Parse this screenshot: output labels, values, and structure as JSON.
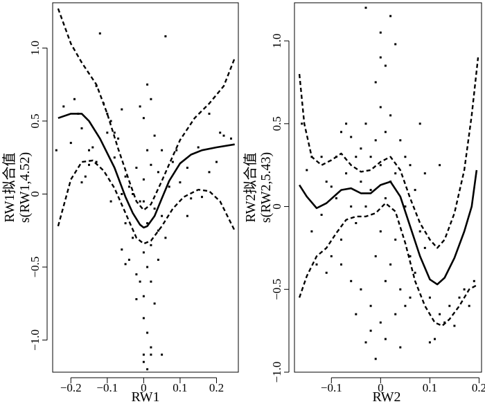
{
  "chart_data": [
    {
      "type": "line",
      "title": "",
      "xlabel": "RW1",
      "ylabel_line1": "RW1拟合值",
      "ylabel_line2": "s(RW1,4.52)",
      "xlim": [
        -0.25,
        0.26
      ],
      "ylim": [
        -1.22,
        1.31
      ],
      "x_ticks": [
        -0.2,
        -0.1,
        0,
        0.1,
        0.2
      ],
      "x_tick_labels": [
        "−0.2",
        "−0.1",
        "0",
        "0.1",
        "0.2"
      ],
      "y_ticks": [
        -1.0,
        -0.5,
        0,
        0.5,
        1.0
      ],
      "y_tick_labels": [
        "−1.0",
        "−0.5",
        "0",
        "0.5",
        "1.0"
      ],
      "series": [
        {
          "role": "fit",
          "style": "solid",
          "points": [
            [
              -0.235,
              0.52
            ],
            [
              -0.2,
              0.55
            ],
            [
              -0.17,
              0.55
            ],
            [
              -0.15,
              0.5
            ],
            [
              -0.12,
              0.38
            ],
            [
              -0.08,
              0.18
            ],
            [
              -0.05,
              -0.02
            ],
            [
              -0.03,
              -0.13
            ],
            [
              -0.01,
              -0.21
            ],
            [
              0.0,
              -0.23
            ],
            [
              0.01,
              -0.22
            ],
            [
              0.03,
              -0.15
            ],
            [
              0.05,
              -0.03
            ],
            [
              0.07,
              0.09
            ],
            [
              0.1,
              0.21
            ],
            [
              0.13,
              0.27
            ],
            [
              0.16,
              0.3
            ],
            [
              0.2,
              0.32
            ],
            [
              0.25,
              0.34
            ]
          ]
        },
        {
          "role": "upper",
          "style": "dashed",
          "points": [
            [
              -0.235,
              1.27
            ],
            [
              -0.2,
              1.03
            ],
            [
              -0.17,
              0.9
            ],
            [
              -0.13,
              0.75
            ],
            [
              -0.1,
              0.55
            ],
            [
              -0.07,
              0.31
            ],
            [
              -0.04,
              0.09
            ],
            [
              -0.02,
              -0.05
            ],
            [
              0.0,
              -0.11
            ],
            [
              0.02,
              -0.07
            ],
            [
              0.05,
              0.09
            ],
            [
              0.08,
              0.26
            ],
            [
              0.1,
              0.37
            ],
            [
              0.14,
              0.52
            ],
            [
              0.18,
              0.62
            ],
            [
              0.22,
              0.74
            ],
            [
              0.25,
              0.93
            ]
          ]
        },
        {
          "role": "lower",
          "style": "dashed",
          "points": [
            [
              -0.235,
              -0.22
            ],
            [
              -0.2,
              0.1
            ],
            [
              -0.17,
              0.22
            ],
            [
              -0.14,
              0.23
            ],
            [
              -0.11,
              0.16
            ],
            [
              -0.08,
              0.04
            ],
            [
              -0.05,
              -0.13
            ],
            [
              -0.02,
              -0.3
            ],
            [
              0.0,
              -0.34
            ],
            [
              0.02,
              -0.32
            ],
            [
              0.05,
              -0.22
            ],
            [
              0.08,
              -0.1
            ],
            [
              0.11,
              -0.02
            ],
            [
              0.15,
              0.03
            ],
            [
              0.18,
              0.02
            ],
            [
              0.21,
              -0.05
            ],
            [
              0.25,
              -0.25
            ]
          ]
        }
      ],
      "scatter": [
        [
          -0.24,
          0.3
        ],
        [
          -0.22,
          0.6
        ],
        [
          -0.2,
          0.35
        ],
        [
          -0.19,
          0.65
        ],
        [
          -0.18,
          0.55
        ],
        [
          -0.17,
          0.45
        ],
        [
          -0.16,
          0.12
        ],
        [
          -0.15,
          0.2
        ],
        [
          -0.14,
          0.32
        ],
        [
          -0.13,
          0.74
        ],
        [
          -0.12,
          1.1
        ],
        [
          -0.1,
          0.55
        ],
        [
          -0.09,
          0.5
        ],
        [
          -0.08,
          0.42
        ],
        [
          -0.08,
          0.25
        ],
        [
          -0.07,
          0.38
        ],
        [
          -0.06,
          0.0
        ],
        [
          -0.06,
          -0.38
        ],
        [
          -0.05,
          -0.2
        ],
        [
          -0.05,
          0.12
        ],
        [
          -0.04,
          0.05
        ],
        [
          -0.04,
          -0.45
        ],
        [
          -0.03,
          0.0
        ],
        [
          -0.03,
          -0.3
        ],
        [
          -0.02,
          -0.55
        ],
        [
          -0.02,
          0.18
        ],
        [
          -0.01,
          0.6
        ],
        [
          -0.01,
          -0.05
        ],
        [
          -0.01,
          -0.6
        ],
        [
          0.0,
          0.52
        ],
        [
          0.0,
          0.1
        ],
        [
          0.0,
          -0.05
        ],
        [
          0.0,
          -0.4
        ],
        [
          0.0,
          -0.7
        ],
        [
          0.0,
          -0.85
        ],
        [
          0.0,
          -1.1
        ],
        [
          0.0,
          -1.15
        ],
        [
          0.01,
          0.75
        ],
        [
          0.01,
          0.3
        ],
        [
          0.01,
          -0.2
        ],
        [
          0.01,
          -0.5
        ],
        [
          0.01,
          -0.95
        ],
        [
          0.01,
          -1.2
        ],
        [
          0.02,
          0.65
        ],
        [
          0.02,
          0.2
        ],
        [
          0.02,
          -0.35
        ],
        [
          0.02,
          -0.6
        ],
        [
          0.02,
          -1.05
        ],
        [
          0.03,
          0.4
        ],
        [
          0.03,
          -0.1
        ],
        [
          0.04,
          0.15
        ],
        [
          0.04,
          -0.25
        ],
        [
          0.05,
          0.3
        ],
        [
          0.05,
          -0.15
        ],
        [
          0.06,
          1.08
        ],
        [
          0.06,
          -0.3
        ],
        [
          0.07,
          0.05
        ],
        [
          0.08,
          0.22
        ],
        [
          0.09,
          0.3
        ],
        [
          0.1,
          0.08
        ],
        [
          0.12,
          0.18
        ],
        [
          0.13,
          -0.03
        ],
        [
          0.15,
          0.32
        ],
        [
          0.16,
          -0.02
        ],
        [
          0.18,
          0.55
        ],
        [
          0.2,
          0.22
        ],
        [
          0.21,
          0.42
        ],
        [
          0.22,
          0.4
        ],
        [
          0.24,
          0.38
        ],
        [
          -0.1,
          0.42
        ],
        [
          -0.11,
          0.62
        ],
        [
          -0.13,
          0.22
        ],
        [
          -0.09,
          -0.05
        ],
        [
          -0.06,
          0.58
        ],
        [
          0.03,
          -0.75
        ],
        [
          0.04,
          -0.45
        ],
        [
          0.12,
          -0.15
        ],
        [
          0.18,
          0.15
        ],
        [
          -0.05,
          -0.48
        ],
        [
          -0.02,
          -0.72
        ],
        [
          0.02,
          -1.1
        ],
        [
          0.05,
          -1.1
        ],
        [
          -0.17,
          0.08
        ],
        [
          -0.15,
          0.3
        ]
      ]
    },
    {
      "type": "line",
      "title": "",
      "xlabel": "RW2",
      "ylabel_line1": "RW2拟合值",
      "ylabel_line2": "s(RW2,5.43)",
      "xlim": [
        -0.175,
        0.205
      ],
      "ylim": [
        -1.0,
        1.23
      ],
      "x_ticks": [
        -0.1,
        0,
        0.1,
        0.2
      ],
      "x_tick_labels": [
        "−0.1",
        "0",
        "0.1",
        "0.2"
      ],
      "y_ticks": [
        -1.0,
        -0.5,
        0,
        0.5,
        1.0
      ],
      "y_tick_labels": [
        "−1.0",
        "−0.5",
        "0",
        "0.5",
        "1.0"
      ],
      "series": [
        {
          "role": "fit",
          "style": "solid",
          "points": [
            [
              -0.165,
              0.13
            ],
            [
              -0.15,
              0.06
            ],
            [
              -0.13,
              -0.01
            ],
            [
              -0.11,
              0.02
            ],
            [
              -0.08,
              0.1
            ],
            [
              -0.06,
              0.11
            ],
            [
              -0.04,
              0.08
            ],
            [
              -0.02,
              0.08
            ],
            [
              0.0,
              0.13
            ],
            [
              0.02,
              0.15
            ],
            [
              0.04,
              0.06
            ],
            [
              0.06,
              -0.12
            ],
            [
              0.08,
              -0.3
            ],
            [
              0.1,
              -0.44
            ],
            [
              0.115,
              -0.47
            ],
            [
              0.13,
              -0.43
            ],
            [
              0.15,
              -0.31
            ],
            [
              0.17,
              -0.15
            ],
            [
              0.185,
              0.0
            ],
            [
              0.195,
              0.22
            ]
          ]
        },
        {
          "role": "upper",
          "style": "dashed",
          "points": [
            [
              -0.165,
              0.8
            ],
            [
              -0.155,
              0.5
            ],
            [
              -0.14,
              0.3
            ],
            [
              -0.12,
              0.25
            ],
            [
              -0.1,
              0.28
            ],
            [
              -0.08,
              0.32
            ],
            [
              -0.06,
              0.25
            ],
            [
              -0.04,
              0.21
            ],
            [
              -0.02,
              0.22
            ],
            [
              0.0,
              0.27
            ],
            [
              0.02,
              0.3
            ],
            [
              0.04,
              0.22
            ],
            [
              0.06,
              0.05
            ],
            [
              0.08,
              -0.1
            ],
            [
              0.1,
              -0.2
            ],
            [
              0.115,
              -0.25
            ],
            [
              0.13,
              -0.2
            ],
            [
              0.15,
              -0.04
            ],
            [
              0.17,
              0.22
            ],
            [
              0.185,
              0.55
            ],
            [
              0.198,
              0.9
            ]
          ]
        },
        {
          "role": "lower",
          "style": "dashed",
          "points": [
            [
              -0.165,
              -0.55
            ],
            [
              -0.15,
              -0.42
            ],
            [
              -0.13,
              -0.3
            ],
            [
              -0.11,
              -0.25
            ],
            [
              -0.09,
              -0.16
            ],
            [
              -0.07,
              -0.08
            ],
            [
              -0.05,
              -0.06
            ],
            [
              -0.03,
              -0.06
            ],
            [
              -0.01,
              -0.04
            ],
            [
              0.01,
              0.02
            ],
            [
              0.03,
              -0.03
            ],
            [
              0.05,
              -0.22
            ],
            [
              0.07,
              -0.45
            ],
            [
              0.09,
              -0.6
            ],
            [
              0.11,
              -0.7
            ],
            [
              0.125,
              -0.72
            ],
            [
              0.14,
              -0.68
            ],
            [
              0.16,
              -0.6
            ],
            [
              0.18,
              -0.5
            ],
            [
              0.198,
              -0.47
            ]
          ]
        }
      ],
      "scatter": [
        [
          -0.16,
          0.5
        ],
        [
          -0.15,
          0.22
        ],
        [
          -0.14,
          -0.15
        ],
        [
          -0.13,
          -0.35
        ],
        [
          -0.12,
          0.3
        ],
        [
          -0.12,
          -0.05
        ],
        [
          -0.11,
          0.15
        ],
        [
          -0.1,
          0.12
        ],
        [
          -0.1,
          -0.3
        ],
        [
          -0.09,
          0.3
        ],
        [
          -0.09,
          0.05
        ],
        [
          -0.08,
          0.45
        ],
        [
          -0.08,
          -0.2
        ],
        [
          -0.07,
          0.5
        ],
        [
          -0.07,
          0.2
        ],
        [
          -0.06,
          0.42
        ],
        [
          -0.06,
          0.0
        ],
        [
          -0.06,
          -0.45
        ],
        [
          -0.05,
          0.3
        ],
        [
          -0.05,
          -0.1
        ],
        [
          -0.04,
          0.35
        ],
        [
          -0.04,
          0.15
        ],
        [
          -0.04,
          -0.5
        ],
        [
          -0.03,
          1.2
        ],
        [
          -0.03,
          0.5
        ],
        [
          -0.03,
          0.0
        ],
        [
          -0.03,
          -0.82
        ],
        [
          -0.02,
          0.3
        ],
        [
          -0.02,
          0.1
        ],
        [
          -0.02,
          -0.6
        ],
        [
          -0.01,
          0.75
        ],
        [
          -0.01,
          0.4
        ],
        [
          -0.01,
          -0.3
        ],
        [
          -0.01,
          -0.92
        ],
        [
          0.0,
          1.05
        ],
        [
          0.0,
          0.6
        ],
        [
          0.0,
          0.25
        ],
        [
          0.0,
          -0.15
        ],
        [
          0.0,
          -0.7
        ],
        [
          0.01,
          0.85
        ],
        [
          0.01,
          0.45
        ],
        [
          0.01,
          0.05
        ],
        [
          0.01,
          -0.45
        ],
        [
          0.01,
          -0.8
        ],
        [
          0.02,
          1.15
        ],
        [
          0.02,
          0.55
        ],
        [
          0.02,
          0.15
        ],
        [
          0.02,
          -0.35
        ],
        [
          0.03,
          0.98
        ],
        [
          0.03,
          0.2
        ],
        [
          0.03,
          -0.2
        ],
        [
          0.04,
          0.4
        ],
        [
          0.04,
          -0.5
        ],
        [
          0.04,
          -0.85
        ],
        [
          0.05,
          0.3
        ],
        [
          0.05,
          0.0
        ],
        [
          0.05,
          -0.6
        ],
        [
          0.06,
          0.25
        ],
        [
          0.06,
          -0.3
        ],
        [
          0.07,
          0.1
        ],
        [
          0.07,
          -0.4
        ],
        [
          0.08,
          0.5
        ],
        [
          0.08,
          -0.15
        ],
        [
          0.09,
          -0.25
        ],
        [
          0.1,
          -0.55
        ],
        [
          0.11,
          -0.8
        ],
        [
          0.12,
          0.25
        ],
        [
          0.12,
          -0.65
        ],
        [
          0.13,
          -0.7
        ],
        [
          0.14,
          -0.6
        ],
        [
          0.15,
          -0.72
        ],
        [
          0.16,
          -0.55
        ],
        [
          0.17,
          -0.5
        ],
        [
          0.18,
          -0.6
        ],
        [
          0.19,
          -0.45
        ],
        [
          -0.14,
          0.3
        ],
        [
          -0.11,
          -0.4
        ],
        [
          0.0,
          0.9
        ],
        [
          0.03,
          -0.65
        ],
        [
          0.06,
          -0.55
        ],
        [
          0.1,
          -0.82
        ],
        [
          -0.08,
          -0.35
        ],
        [
          0.09,
          0.2
        ],
        [
          -0.05,
          -0.65
        ],
        [
          -0.02,
          -0.75
        ]
      ]
    }
  ]
}
